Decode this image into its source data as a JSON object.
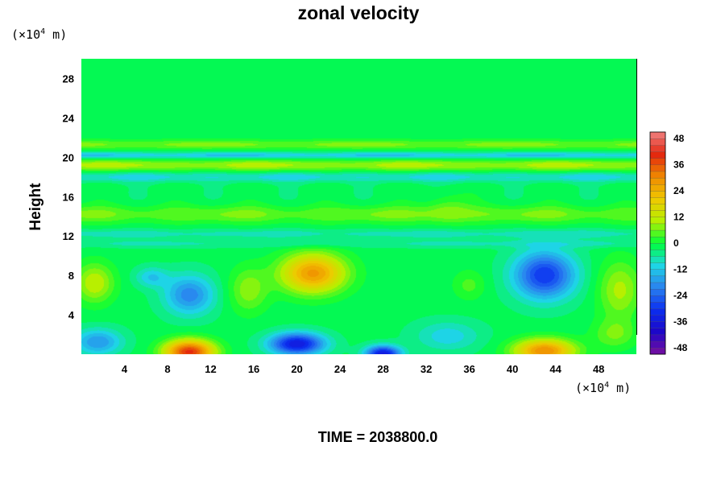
{
  "chart_data": {
    "type": "heatmap",
    "title": "zonal velocity",
    "xlabel": "",
    "ylabel": "Height",
    "x_unit_prefix": "(×10",
    "x_unit_exp": "4",
    "x_unit_suffix": " m)",
    "y_unit_prefix": "(×10",
    "y_unit_exp": "4",
    "y_unit_suffix": " m)",
    "xlim": [
      0,
      51.5
    ],
    "ylim": [
      0,
      30
    ],
    "x_ticks": [
      4,
      8,
      12,
      16,
      20,
      24,
      28,
      32,
      36,
      40,
      44,
      48
    ],
    "y_ticks": [
      4,
      8,
      12,
      16,
      20,
      24,
      28
    ],
    "colorbar": {
      "range": [
        -51,
        51
      ],
      "ticks": [
        48,
        36,
        24,
        12,
        0,
        -12,
        -24,
        -36,
        -48
      ],
      "levels": 34,
      "palette": [
        "#7a0f9e",
        "#1d06c8",
        "#0a2ef0",
        "#2a82f0",
        "#1ed6e6",
        "#00ff3a",
        "#b6f000",
        "#f0c800",
        "#f08a00",
        "#e4260e",
        "#f08080"
      ]
    },
    "features": [
      {
        "name": "band_z21",
        "x": null,
        "y": 21.3,
        "sx": null,
        "sy": 0.5,
        "amp": 10
      },
      {
        "name": "band_z20",
        "x": null,
        "y": 20.2,
        "sx": null,
        "sy": 0.35,
        "amp": -12
      },
      {
        "name": "band_z19",
        "x": null,
        "y": 19.2,
        "sx": null,
        "sy": 0.6,
        "amp": 13
      },
      {
        "name": "band_z18",
        "x": null,
        "y": 18.0,
        "sx": null,
        "sy": 0.5,
        "amp": -9
      },
      {
        "name": "band_z14",
        "x": null,
        "y": 14.2,
        "sx": null,
        "sy": 0.9,
        "amp": 9
      },
      {
        "name": "band_z12",
        "x": null,
        "y": 12.2,
        "sx": null,
        "sy": 0.5,
        "amp": -6
      },
      {
        "name": "band_z11",
        "x": null,
        "y": 11.2,
        "sx": null,
        "sy": 0.4,
        "amp": -5
      },
      {
        "name": "pos_core_21_8",
        "x": 21.5,
        "y": 8.2,
        "sx": 3.0,
        "sy": 2.0,
        "amp": 30
      },
      {
        "name": "neg_core_43_8",
        "x": 43.0,
        "y": 8.0,
        "sx": 2.8,
        "sy": 2.4,
        "amp": -28
      },
      {
        "name": "neg_core_10_6",
        "x": 10.0,
        "y": 6.0,
        "sx": 2.3,
        "sy": 2.0,
        "amp": -18
      },
      {
        "name": "neg_core_6_7",
        "x": 6.5,
        "y": 7.8,
        "sx": 1.5,
        "sy": 1.0,
        "amp": -10
      },
      {
        "name": "pos_core_1_7",
        "x": 1.2,
        "y": 7.2,
        "sx": 1.8,
        "sy": 2.0,
        "amp": 14
      },
      {
        "name": "pos_core_50_7",
        "x": 50.0,
        "y": 6.5,
        "sx": 2.0,
        "sy": 3.0,
        "amp": 12
      },
      {
        "name": "pos_core_15_7",
        "x": 15.5,
        "y": 6.5,
        "sx": 1.8,
        "sy": 2.3,
        "amp": 10
      },
      {
        "name": "pos_core_36_7",
        "x": 36.0,
        "y": 7.0,
        "sx": 1.5,
        "sy": 1.5,
        "amp": 6
      },
      {
        "name": "pos_surface_10",
        "x": 10.0,
        "y": 0.2,
        "sx": 2.3,
        "sy": 1.2,
        "amp": 42
      },
      {
        "name": "neg_surface_20",
        "x": 20.0,
        "y": 1.0,
        "sx": 2.5,
        "sy": 1.1,
        "amp": -34
      },
      {
        "name": "neg_surface_28",
        "x": 28.0,
        "y": 0.0,
        "sx": 1.6,
        "sy": 0.8,
        "amp": -34
      },
      {
        "name": "pos_surface_43",
        "x": 43.0,
        "y": 0.3,
        "sx": 2.8,
        "sy": 1.2,
        "amp": 32
      },
      {
        "name": "neg_surface_2",
        "x": 1.5,
        "y": 1.2,
        "sx": 2.2,
        "sy": 1.3,
        "amp": -16
      },
      {
        "name": "neg_surface_34",
        "x": 34.0,
        "y": 1.8,
        "sx": 3.0,
        "sy": 1.5,
        "amp": -9
      },
      {
        "name": "pos_surface_48",
        "x": 49.5,
        "y": 2.0,
        "sx": 2.0,
        "sy": 1.5,
        "amp": 8
      },
      {
        "name": "pos_bump_34_15",
        "x": 34.0,
        "y": 14.8,
        "sx": 2.0,
        "sy": 1.5,
        "amp": 6
      }
    ]
  },
  "footer": {
    "time_label": "TIME = 2038800.0"
  }
}
